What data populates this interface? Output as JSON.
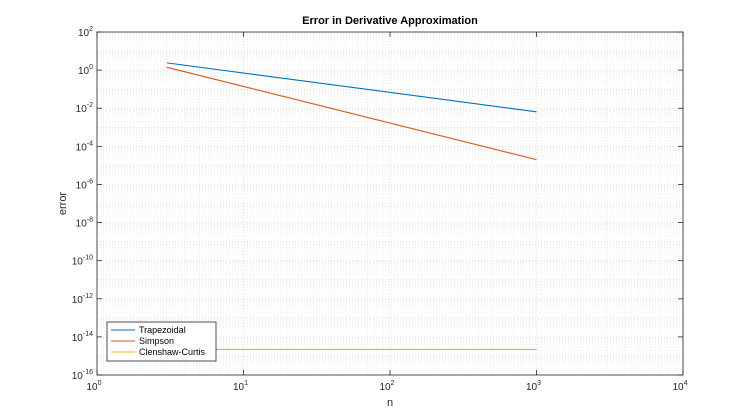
{
  "chart_data": {
    "type": "line",
    "title": "Error in Derivative Approximation",
    "xlabel": "n",
    "ylabel": "error",
    "xscale": "log",
    "yscale": "log",
    "xlim": [
      1,
      10000
    ],
    "ylim": [
      1e-16,
      100
    ],
    "x_ticks": [
      {
        "base": "10",
        "exp": "0",
        "value": 1
      },
      {
        "base": "10",
        "exp": "1",
        "value": 10
      },
      {
        "base": "10",
        "exp": "2",
        "value": 100
      },
      {
        "base": "10",
        "exp": "3",
        "value": 1000
      },
      {
        "base": "10",
        "exp": "4",
        "value": 10000
      }
    ],
    "y_ticks": [
      {
        "base": "10",
        "exp": "2",
        "value": 100.0
      },
      {
        "base": "10",
        "exp": "0",
        "value": 1.0
      },
      {
        "base": "10",
        "exp": "-2",
        "value": 0.01
      },
      {
        "base": "10",
        "exp": "-4",
        "value": 0.0001
      },
      {
        "base": "10",
        "exp": "-6",
        "value": 1e-06
      },
      {
        "base": "10",
        "exp": "-8",
        "value": 1e-08
      },
      {
        "base": "10",
        "exp": "-10",
        "value": 1e-10
      },
      {
        "base": "10",
        "exp": "-12",
        "value": 1e-12
      },
      {
        "base": "10",
        "exp": "-14",
        "value": 1e-14
      },
      {
        "base": "10",
        "exp": "-16",
        "value": 1e-16
      }
    ],
    "grid": true,
    "minor_grid": true,
    "legend_position": "bottom-left",
    "series": [
      {
        "name": "Trapezoidal",
        "color": "#0072BD",
        "x": [
          3,
          1000
        ],
        "y": [
          2.4,
          0.0065
        ]
      },
      {
        "name": "Simpson",
        "color": "#D95319",
        "x": [
          3,
          1000
        ],
        "y": [
          1.4,
          2e-05
        ]
      },
      {
        "name": "Clenshaw-Curtis",
        "color": "#EDB120",
        "x": [
          3,
          1000
        ],
        "y": [
          2.2e-15,
          2.2e-15
        ]
      }
    ]
  }
}
